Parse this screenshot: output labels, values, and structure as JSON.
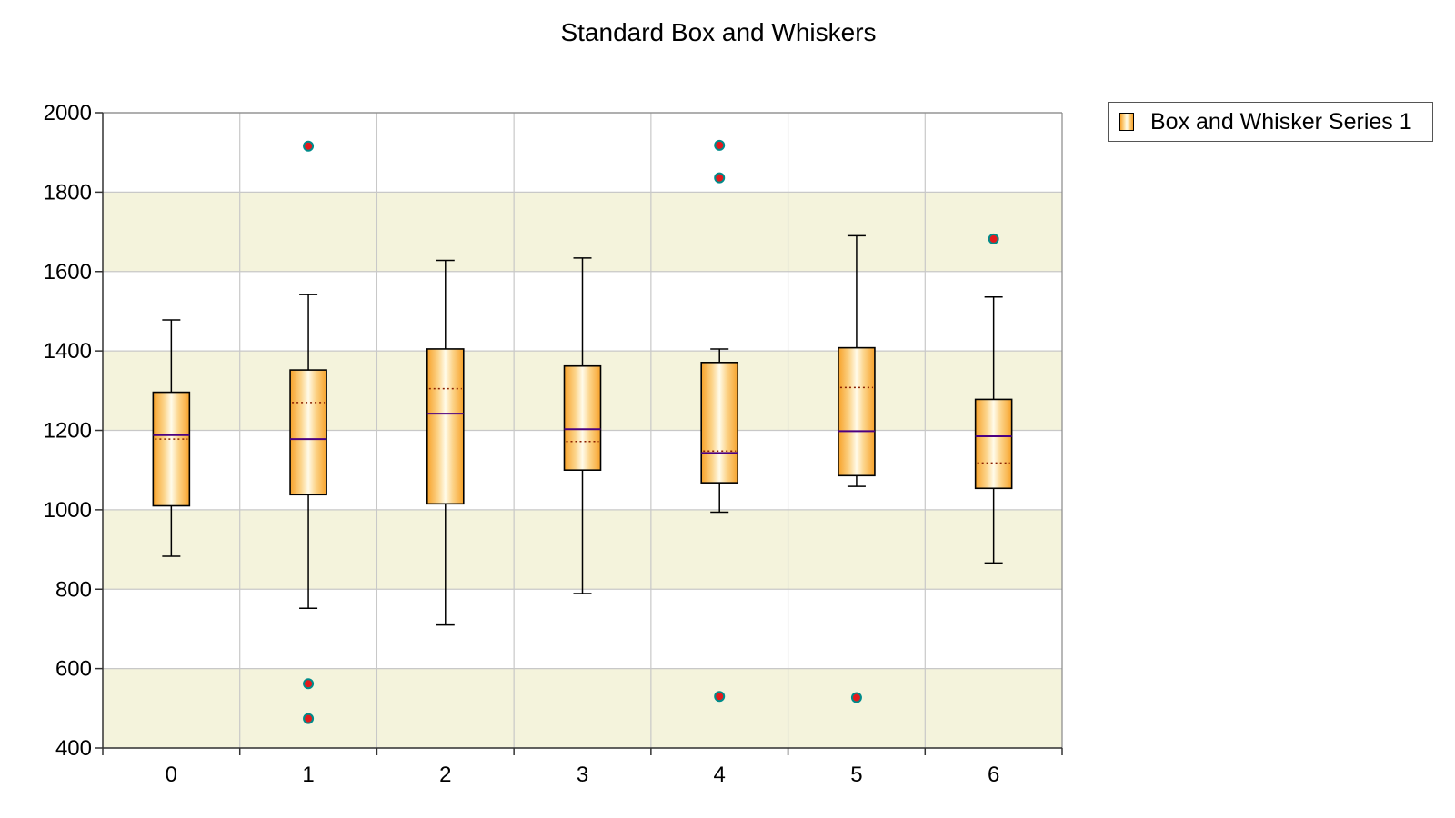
{
  "chart_data": {
    "type": "boxplot",
    "title": "Standard Box and Whiskers",
    "xlabel": "",
    "ylabel": "",
    "categories": [
      "0",
      "1",
      "2",
      "3",
      "4",
      "5",
      "6"
    ],
    "ylim": [
      400,
      2000
    ],
    "y_ticks": [
      400,
      600,
      800,
      1000,
      1200,
      1400,
      1600,
      1800,
      2000
    ],
    "grid": true,
    "legend_position": "top-right",
    "series": [
      {
        "name": "Box and Whisker Series 1",
        "boxes": [
          {
            "category": "0",
            "whisker_low": 883,
            "q1": 1010,
            "median": 1188,
            "mean": 1178,
            "q3": 1296,
            "whisker_high": 1478,
            "outliers": []
          },
          {
            "category": "1",
            "whisker_low": 752,
            "q1": 1038,
            "median": 1178,
            "mean": 1270,
            "q3": 1352,
            "whisker_high": 1542,
            "outliers": [
              1916,
              562,
              474
            ]
          },
          {
            "category": "2",
            "whisker_low": 710,
            "q1": 1015,
            "median": 1242,
            "mean": 1305,
            "q3": 1405,
            "whisker_high": 1628,
            "outliers": []
          },
          {
            "category": "3",
            "whisker_low": 789,
            "q1": 1100,
            "median": 1203,
            "mean": 1172,
            "q3": 1362,
            "whisker_high": 1634,
            "outliers": []
          },
          {
            "category": "4",
            "whisker_low": 994,
            "q1": 1068,
            "median": 1143,
            "mean": 1148,
            "q3": 1371,
            "whisker_high": 1405,
            "outliers": [
              1918,
              1836,
              530
            ]
          },
          {
            "category": "5",
            "whisker_low": 1059,
            "q1": 1086,
            "median": 1198,
            "mean": 1308,
            "q3": 1408,
            "whisker_high": 1690,
            "outliers": [
              527
            ]
          },
          {
            "category": "6",
            "whisker_low": 866,
            "q1": 1054,
            "median": 1185,
            "mean": 1118,
            "q3": 1278,
            "whisker_high": 1536,
            "outliers": [
              1682
            ]
          }
        ]
      }
    ]
  },
  "colors": {
    "band": "#f4f3dc",
    "grid": "#c8c8c8",
    "box_edge": "#f7a22a",
    "box_center": "#fffbea",
    "median": "#4b0082",
    "mean": "#8b2000",
    "outlier_fill": "#e41a1c",
    "outlier_edge": "#008b8b",
    "axis": "#333333"
  }
}
